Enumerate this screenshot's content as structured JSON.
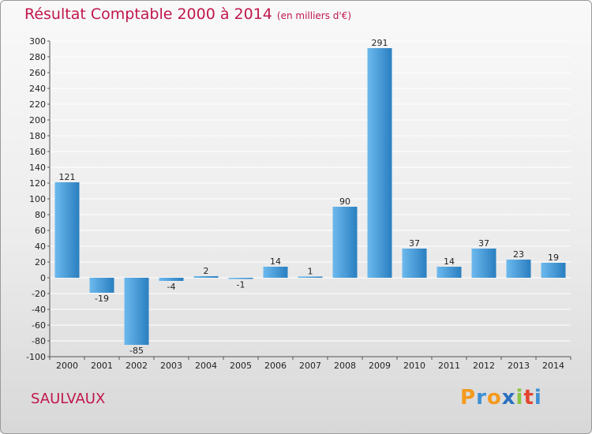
{
  "header": {
    "title": "Résultat Comptable 2000 à 2014",
    "subtitle": "(en milliers d'€)"
  },
  "commune": "SAULVAUX",
  "logo": {
    "letters": [
      "P",
      "r",
      "o",
      "x",
      "i",
      "t",
      "i"
    ]
  },
  "colors": {
    "title": "#c0174b",
    "bar_light": "#6cb9ee",
    "bar_dark": "#2a7fc0",
    "grid": "#ffffff",
    "logo": [
      "#f39a1e",
      "#3d8fd4",
      "#f39a1e",
      "#2a6fc0",
      "#8bc43f",
      "#e3452f",
      "#3d8fd4"
    ]
  },
  "chart_data": {
    "type": "bar",
    "title": "Résultat Comptable 2000 à 2014",
    "subtitle": "(en milliers d'€)",
    "xlabel": "",
    "ylabel": "",
    "categories": [
      "2000",
      "2001",
      "2002",
      "2003",
      "2004",
      "2005",
      "2006",
      "2007",
      "2008",
      "2009",
      "2010",
      "2011",
      "2012",
      "2013",
      "2014"
    ],
    "values": [
      121,
      -19,
      -85,
      -4,
      2,
      -1,
      14,
      1,
      90,
      291,
      37,
      14,
      37,
      23,
      19
    ],
    "ylim": [
      -100,
      300
    ],
    "yticks": [
      -100,
      -80,
      -60,
      -40,
      -20,
      0,
      20,
      40,
      60,
      80,
      100,
      120,
      140,
      160,
      180,
      200,
      220,
      240,
      260,
      280,
      300
    ],
    "grid": true,
    "data_labels": true,
    "legend": "none"
  }
}
